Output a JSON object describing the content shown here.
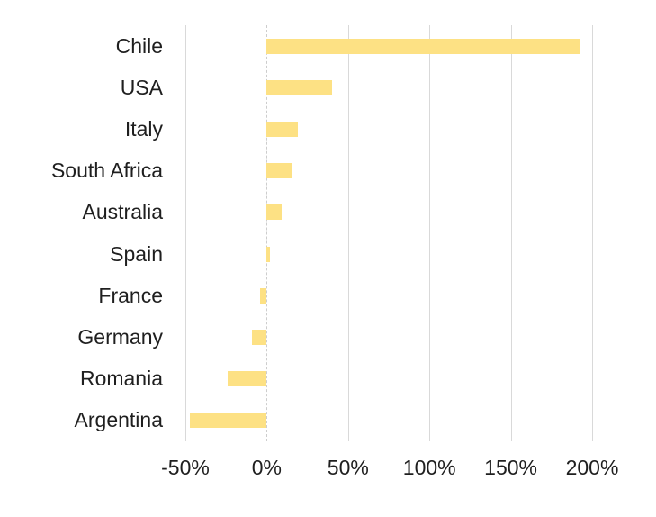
{
  "chart_data": {
    "type": "bar",
    "orientation": "horizontal",
    "title": "",
    "categories": [
      "Chile",
      "USA",
      "Italy",
      "South Africa",
      "Australia",
      "Spain",
      "France",
      "Germany",
      "Romania",
      "Argentina"
    ],
    "values": [
      192,
      40,
      19,
      16,
      9,
      2,
      -4,
      -9,
      -24,
      -47
    ],
    "unit": "%",
    "xlim": [
      -50,
      200
    ],
    "x_ticks": [
      -50,
      0,
      50,
      100,
      150,
      200
    ],
    "x_tick_labels": [
      "-50%",
      "0%",
      "50%",
      "100%",
      "150%",
      "200%"
    ],
    "grid": true,
    "legend": "none",
    "bar_color": "#FDE184",
    "gridline_color": "#D9D9D9",
    "zero_line_color": "#CDCDCD",
    "label_color": "#1f1f1f",
    "background": "#FFFFFF"
  }
}
